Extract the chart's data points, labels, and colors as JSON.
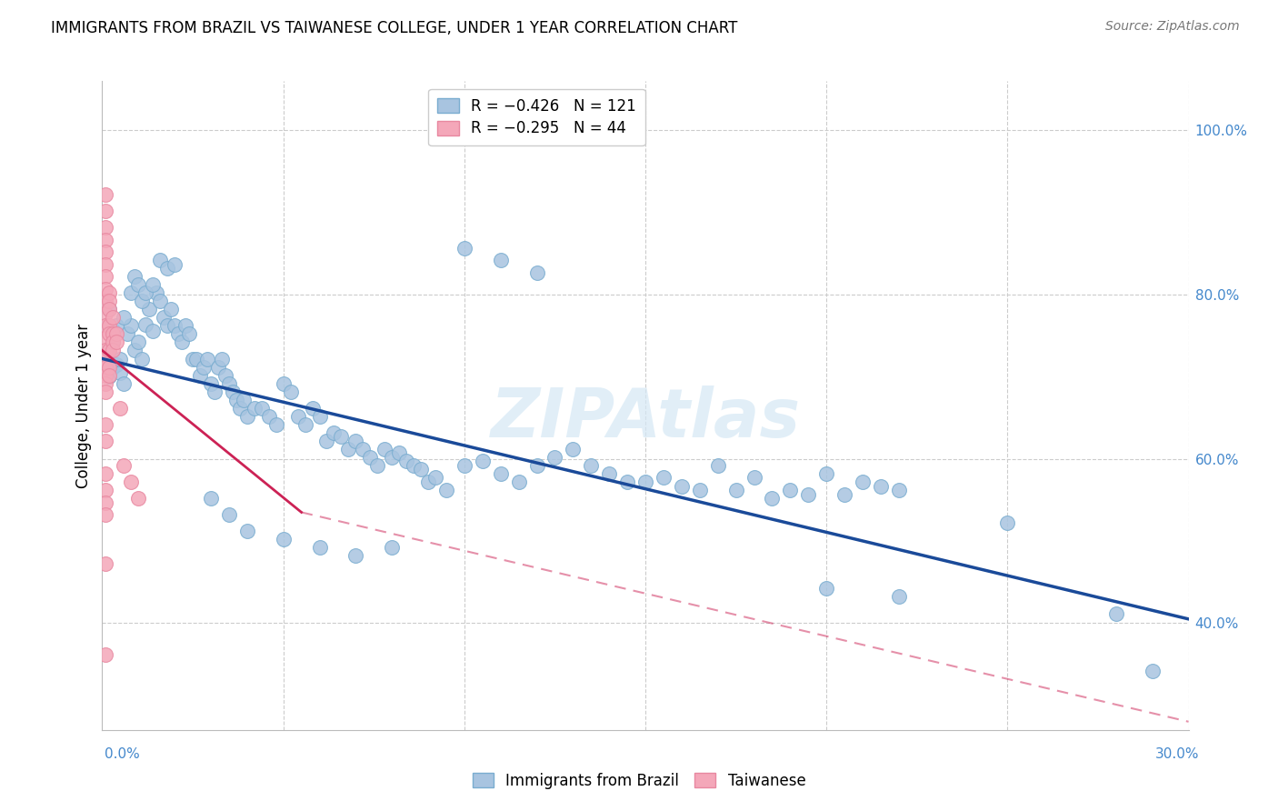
{
  "title": "IMMIGRANTS FROM BRAZIL VS TAIWANESE COLLEGE, UNDER 1 YEAR CORRELATION CHART",
  "source": "Source: ZipAtlas.com",
  "ylabel": "College, Under 1 year",
  "watermark": "ZIPAtlas",
  "blue_color": "#a8c4e0",
  "blue_edge_color": "#7aadd0",
  "pink_color": "#f4a7b9",
  "pink_edge_color": "#e888a0",
  "blue_line_color": "#1a4a99",
  "pink_line_color": "#cc2255",
  "right_tick_color": "#4488cc",
  "xlim": [
    0.0,
    0.3
  ],
  "ylim": [
    0.27,
    1.06
  ],
  "blue_scatter": [
    [
      0.001,
      0.72
    ],
    [
      0.002,
      0.7
    ],
    [
      0.003,
      0.712
    ],
    [
      0.004,
      0.715
    ],
    [
      0.005,
      0.705
    ],
    [
      0.006,
      0.692
    ],
    [
      0.007,
      0.752
    ],
    [
      0.008,
      0.762
    ],
    [
      0.009,
      0.732
    ],
    [
      0.01,
      0.742
    ],
    [
      0.011,
      0.722
    ],
    [
      0.012,
      0.763
    ],
    [
      0.013,
      0.782
    ],
    [
      0.014,
      0.756
    ],
    [
      0.015,
      0.802
    ],
    [
      0.016,
      0.792
    ],
    [
      0.017,
      0.772
    ],
    [
      0.018,
      0.762
    ],
    [
      0.019,
      0.782
    ],
    [
      0.02,
      0.762
    ],
    [
      0.021,
      0.752
    ],
    [
      0.022,
      0.742
    ],
    [
      0.023,
      0.762
    ],
    [
      0.024,
      0.752
    ],
    [
      0.025,
      0.722
    ],
    [
      0.026,
      0.722
    ],
    [
      0.027,
      0.702
    ],
    [
      0.028,
      0.712
    ],
    [
      0.029,
      0.722
    ],
    [
      0.03,
      0.692
    ],
    [
      0.031,
      0.682
    ],
    [
      0.032,
      0.712
    ],
    [
      0.033,
      0.722
    ],
    [
      0.034,
      0.702
    ],
    [
      0.035,
      0.692
    ],
    [
      0.036,
      0.682
    ],
    [
      0.037,
      0.672
    ],
    [
      0.038,
      0.662
    ],
    [
      0.039,
      0.672
    ],
    [
      0.04,
      0.652
    ],
    [
      0.042,
      0.662
    ],
    [
      0.044,
      0.662
    ],
    [
      0.046,
      0.652
    ],
    [
      0.048,
      0.642
    ],
    [
      0.05,
      0.692
    ],
    [
      0.052,
      0.682
    ],
    [
      0.054,
      0.652
    ],
    [
      0.056,
      0.642
    ],
    [
      0.058,
      0.662
    ],
    [
      0.06,
      0.652
    ],
    [
      0.062,
      0.622
    ],
    [
      0.064,
      0.632
    ],
    [
      0.066,
      0.627
    ],
    [
      0.068,
      0.612
    ],
    [
      0.07,
      0.622
    ],
    [
      0.072,
      0.612
    ],
    [
      0.074,
      0.602
    ],
    [
      0.076,
      0.592
    ],
    [
      0.078,
      0.612
    ],
    [
      0.08,
      0.602
    ],
    [
      0.082,
      0.607
    ],
    [
      0.084,
      0.597
    ],
    [
      0.086,
      0.592
    ],
    [
      0.088,
      0.587
    ],
    [
      0.09,
      0.572
    ],
    [
      0.092,
      0.577
    ],
    [
      0.095,
      0.562
    ],
    [
      0.1,
      0.592
    ],
    [
      0.105,
      0.597
    ],
    [
      0.11,
      0.582
    ],
    [
      0.115,
      0.572
    ],
    [
      0.12,
      0.592
    ],
    [
      0.125,
      0.602
    ],
    [
      0.13,
      0.612
    ],
    [
      0.135,
      0.592
    ],
    [
      0.14,
      0.582
    ],
    [
      0.145,
      0.572
    ],
    [
      0.15,
      0.572
    ],
    [
      0.155,
      0.577
    ],
    [
      0.16,
      0.567
    ],
    [
      0.165,
      0.562
    ],
    [
      0.17,
      0.592
    ],
    [
      0.175,
      0.562
    ],
    [
      0.18,
      0.577
    ],
    [
      0.185,
      0.552
    ],
    [
      0.19,
      0.562
    ],
    [
      0.195,
      0.557
    ],
    [
      0.2,
      0.582
    ],
    [
      0.205,
      0.557
    ],
    [
      0.21,
      0.572
    ],
    [
      0.215,
      0.567
    ],
    [
      0.22,
      0.562
    ],
    [
      0.1,
      0.857
    ],
    [
      0.11,
      0.842
    ],
    [
      0.12,
      0.827
    ],
    [
      0.016,
      0.842
    ],
    [
      0.018,
      0.832
    ],
    [
      0.02,
      0.837
    ],
    [
      0.005,
      0.722
    ],
    [
      0.003,
      0.757
    ],
    [
      0.004,
      0.762
    ],
    [
      0.002,
      0.782
    ],
    [
      0.001,
      0.762
    ],
    [
      0.006,
      0.772
    ],
    [
      0.008,
      0.802
    ],
    [
      0.009,
      0.822
    ],
    [
      0.01,
      0.812
    ],
    [
      0.011,
      0.792
    ],
    [
      0.012,
      0.802
    ],
    [
      0.014,
      0.812
    ],
    [
      0.002,
      0.732
    ],
    [
      0.003,
      0.742
    ],
    [
      0.03,
      0.552
    ],
    [
      0.035,
      0.532
    ],
    [
      0.04,
      0.512
    ],
    [
      0.05,
      0.502
    ],
    [
      0.06,
      0.492
    ],
    [
      0.07,
      0.482
    ],
    [
      0.08,
      0.492
    ],
    [
      0.25,
      0.522
    ],
    [
      0.2,
      0.442
    ],
    [
      0.22,
      0.432
    ],
    [
      0.28,
      0.412
    ],
    [
      0.29,
      0.342
    ]
  ],
  "pink_scatter": [
    [
      0.001,
      0.922
    ],
    [
      0.001,
      0.902
    ],
    [
      0.001,
      0.882
    ],
    [
      0.001,
      0.867
    ],
    [
      0.001,
      0.852
    ],
    [
      0.001,
      0.837
    ],
    [
      0.001,
      0.822
    ],
    [
      0.001,
      0.807
    ],
    [
      0.001,
      0.792
    ],
    [
      0.001,
      0.777
    ],
    [
      0.001,
      0.762
    ],
    [
      0.001,
      0.747
    ],
    [
      0.001,
      0.732
    ],
    [
      0.001,
      0.722
    ],
    [
      0.001,
      0.712
    ],
    [
      0.001,
      0.702
    ],
    [
      0.001,
      0.692
    ],
    [
      0.001,
      0.682
    ],
    [
      0.001,
      0.642
    ],
    [
      0.001,
      0.622
    ],
    [
      0.001,
      0.582
    ],
    [
      0.001,
      0.562
    ],
    [
      0.001,
      0.547
    ],
    [
      0.001,
      0.532
    ],
    [
      0.002,
      0.802
    ],
    [
      0.002,
      0.792
    ],
    [
      0.002,
      0.782
    ],
    [
      0.002,
      0.762
    ],
    [
      0.002,
      0.752
    ],
    [
      0.002,
      0.732
    ],
    [
      0.002,
      0.712
    ],
    [
      0.002,
      0.702
    ],
    [
      0.003,
      0.772
    ],
    [
      0.003,
      0.752
    ],
    [
      0.003,
      0.742
    ],
    [
      0.003,
      0.732
    ],
    [
      0.004,
      0.752
    ],
    [
      0.004,
      0.742
    ],
    [
      0.005,
      0.662
    ],
    [
      0.001,
      0.472
    ],
    [
      0.006,
      0.592
    ],
    [
      0.008,
      0.572
    ],
    [
      0.01,
      0.552
    ],
    [
      0.001,
      0.362
    ]
  ],
  "blue_line": [
    [
      0.0,
      0.722
    ],
    [
      0.3,
      0.405
    ]
  ],
  "pink_line_solid": [
    [
      0.0,
      0.732
    ],
    [
      0.055,
      0.535
    ]
  ],
  "pink_line_dashed": [
    [
      0.055,
      0.535
    ],
    [
      0.3,
      0.28
    ]
  ]
}
